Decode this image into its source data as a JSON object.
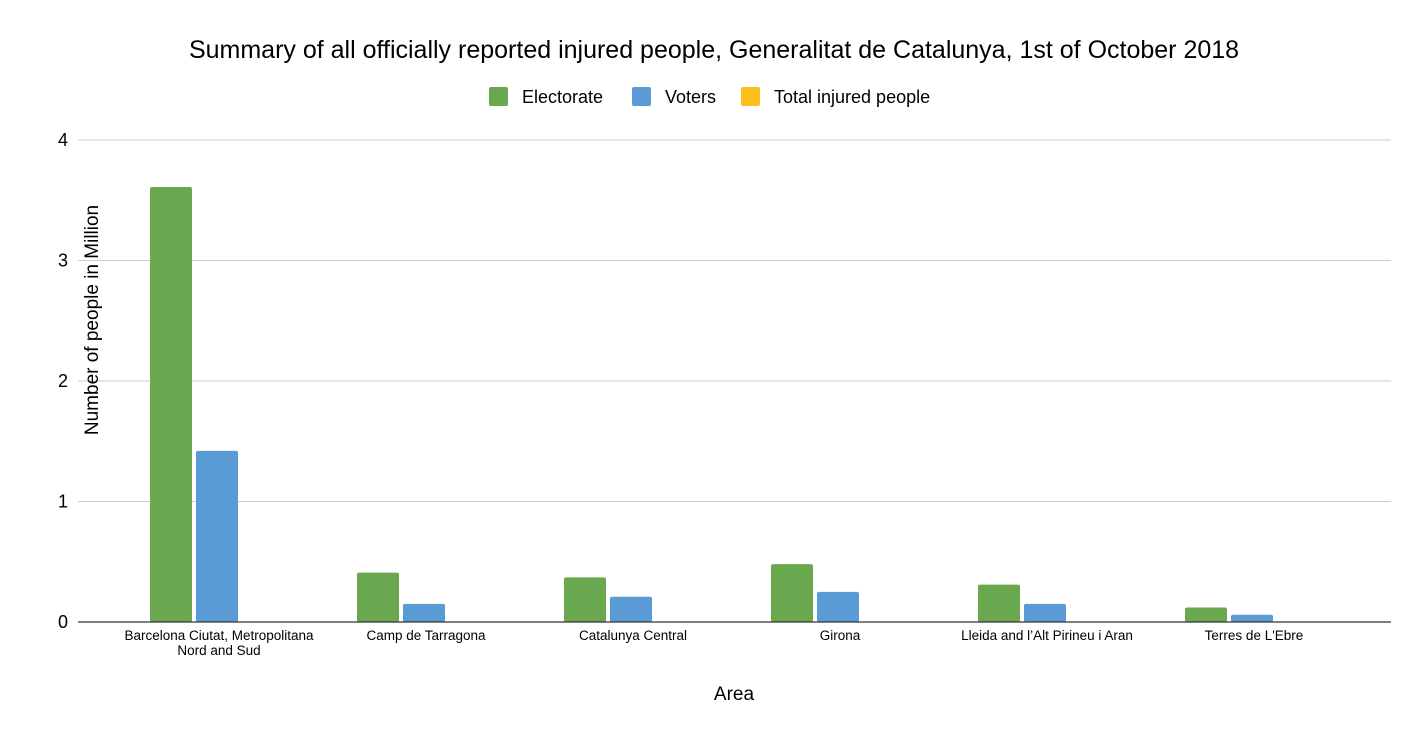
{
  "chart_data": {
    "type": "bar",
    "title": "Summary of all officially reported injured people, Generalitat de Catalunya, 1st of October 2018",
    "xlabel": "Area",
    "ylabel": "Number of people in Million",
    "ylim": [
      0,
      4
    ],
    "yticks": [
      0,
      1,
      2,
      3,
      4
    ],
    "grid": true,
    "legend_position": "top",
    "categories": [
      [
        "Barcelona Ciutat, Metropolitana",
        "Nord and Sud"
      ],
      [
        "Camp de Tarragona"
      ],
      [
        "Catalunya Central"
      ],
      [
        "Girona"
      ],
      [
        "Lleida and l’Alt Pirineu i Aran"
      ],
      [
        "Terres de L'Ebre"
      ]
    ],
    "series": [
      {
        "name": "Electorate",
        "color": "#6aa84f",
        "values": [
          3.61,
          0.41,
          0.37,
          0.48,
          0.31,
          0.12
        ]
      },
      {
        "name": "Voters",
        "color": "#5b9bd5",
        "values": [
          1.42,
          0.15,
          0.21,
          0.25,
          0.15,
          0.06
        ]
      },
      {
        "name": "Total injured people",
        "color": "#fbc01d",
        "values": [
          0.001,
          0.0001,
          0.0001,
          0.0002,
          0.0001,
          5e-05
        ]
      }
    ]
  }
}
